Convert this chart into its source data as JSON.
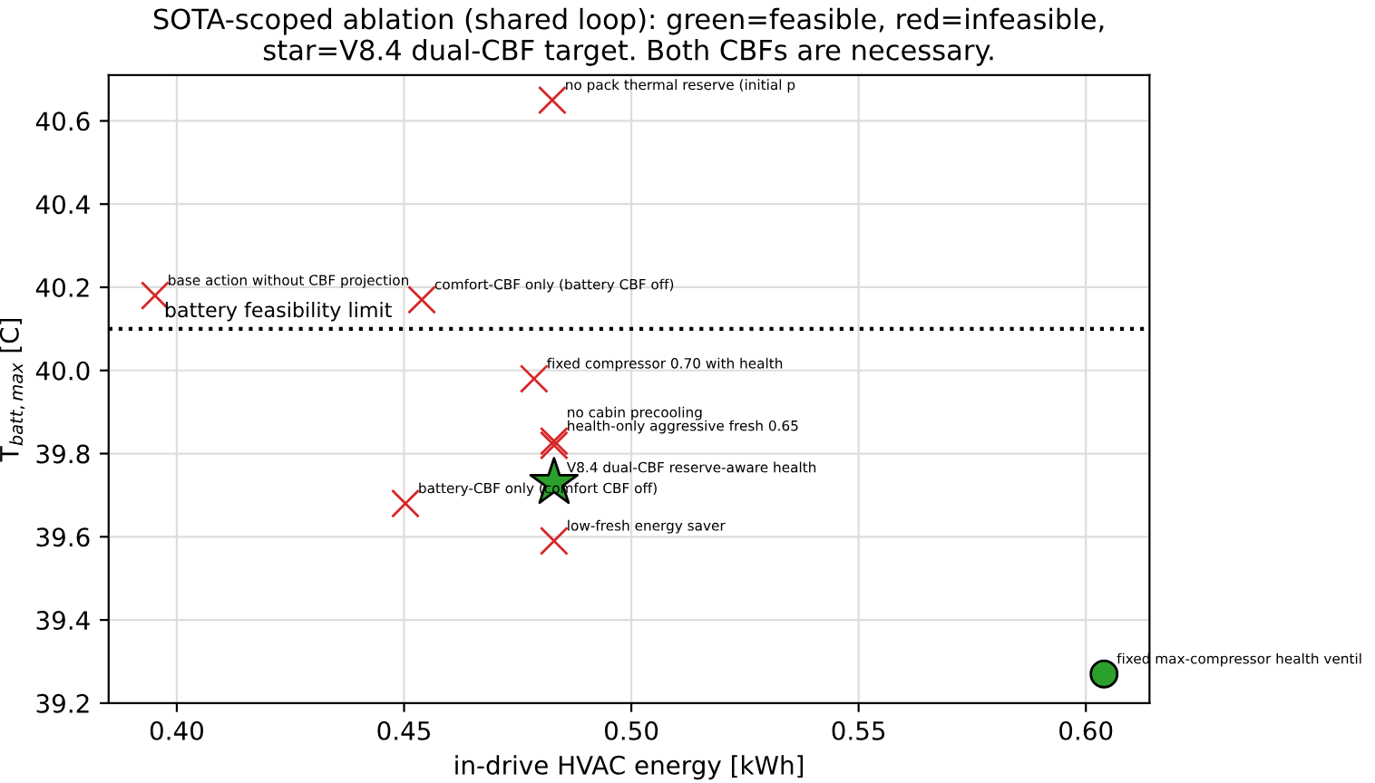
{
  "chart_data": {
    "type": "scatter",
    "title": "SOTA-scoped ablation (shared loop): green=feasible, red=infeasible,\nstar=V8.4 dual-CBF target. Both CBFs are necessary.",
    "xlabel": "in-drive HVAC energy [kWh]",
    "ylabel": "T$_{batt,max}$ [C]",
    "xlim": [
      0.385,
      0.614
    ],
    "ylim": [
      39.2,
      40.71
    ],
    "xticks": [
      {
        "value": 0.4,
        "label": "0.40"
      },
      {
        "value": 0.45,
        "label": "0.45"
      },
      {
        "value": 0.5,
        "label": "0.50"
      },
      {
        "value": 0.55,
        "label": "0.55"
      },
      {
        "value": 0.6,
        "label": "0.60"
      }
    ],
    "yticks": [
      {
        "value": 39.2,
        "label": "39.2"
      },
      {
        "value": 39.4,
        "label": "39.4"
      },
      {
        "value": 39.6,
        "label": "39.6"
      },
      {
        "value": 39.8,
        "label": "39.8"
      },
      {
        "value": 40.0,
        "label": "40.0"
      },
      {
        "value": 40.2,
        "label": "40.2"
      },
      {
        "value": 40.4,
        "label": "40.4"
      },
      {
        "value": 40.6,
        "label": "40.6"
      }
    ],
    "grid": true,
    "series": [
      {
        "marker": "cross",
        "color": "#d62728",
        "x": [
          0.4826,
          0.3952,
          0.4539,
          0.4786,
          0.483,
          0.483,
          0.4503,
          0.483
        ],
        "values": [
          40.65,
          40.18,
          40.17,
          39.98,
          39.83,
          39.82,
          39.68,
          39.59
        ]
      },
      {
        "marker": "circle",
        "color": "#2ca02c",
        "x": [
          0.604
        ],
        "values": [
          39.27
        ]
      },
      {
        "marker": "star",
        "color": "#2ca02c",
        "x": [
          0.483
        ],
        "values": [
          39.73
        ]
      }
    ],
    "ref_lines": [
      {
        "axis": "y",
        "value": 40.1,
        "label": "battery feasibility limit",
        "color": "#000000",
        "line_style": "dotted"
      }
    ],
    "annotations": [
      {
        "text": "no pack thermal reserve (initial p",
        "x": 0.4826,
        "y": 40.65
      },
      {
        "text": "base action without CBF projection",
        "x": 0.3952,
        "y": 40.18
      },
      {
        "text": "comfort-CBF only (battery CBF off)",
        "x": 0.4539,
        "y": 40.17
      },
      {
        "text": "fixed compressor 0.70 with health",
        "x": 0.4786,
        "y": 39.98
      },
      {
        "text": "health-only aggressive fresh 0.65",
        "x": 0.483,
        "y": 39.83
      },
      {
        "text": "no cabin precooling",
        "x": 0.483,
        "y": 39.82
      },
      {
        "text": "V8.4 dual-CBF reserve-aware health",
        "x": 0.483,
        "y": 39.73
      },
      {
        "text": "battery-CBF only (comfort CBF off)",
        "x": 0.4503,
        "y": 39.68
      },
      {
        "text": "low-fresh energy saver",
        "x": 0.483,
        "y": 39.59
      },
      {
        "text": "fixed max-compressor health ventil",
        "x": 0.604,
        "y": 39.27
      }
    ]
  }
}
